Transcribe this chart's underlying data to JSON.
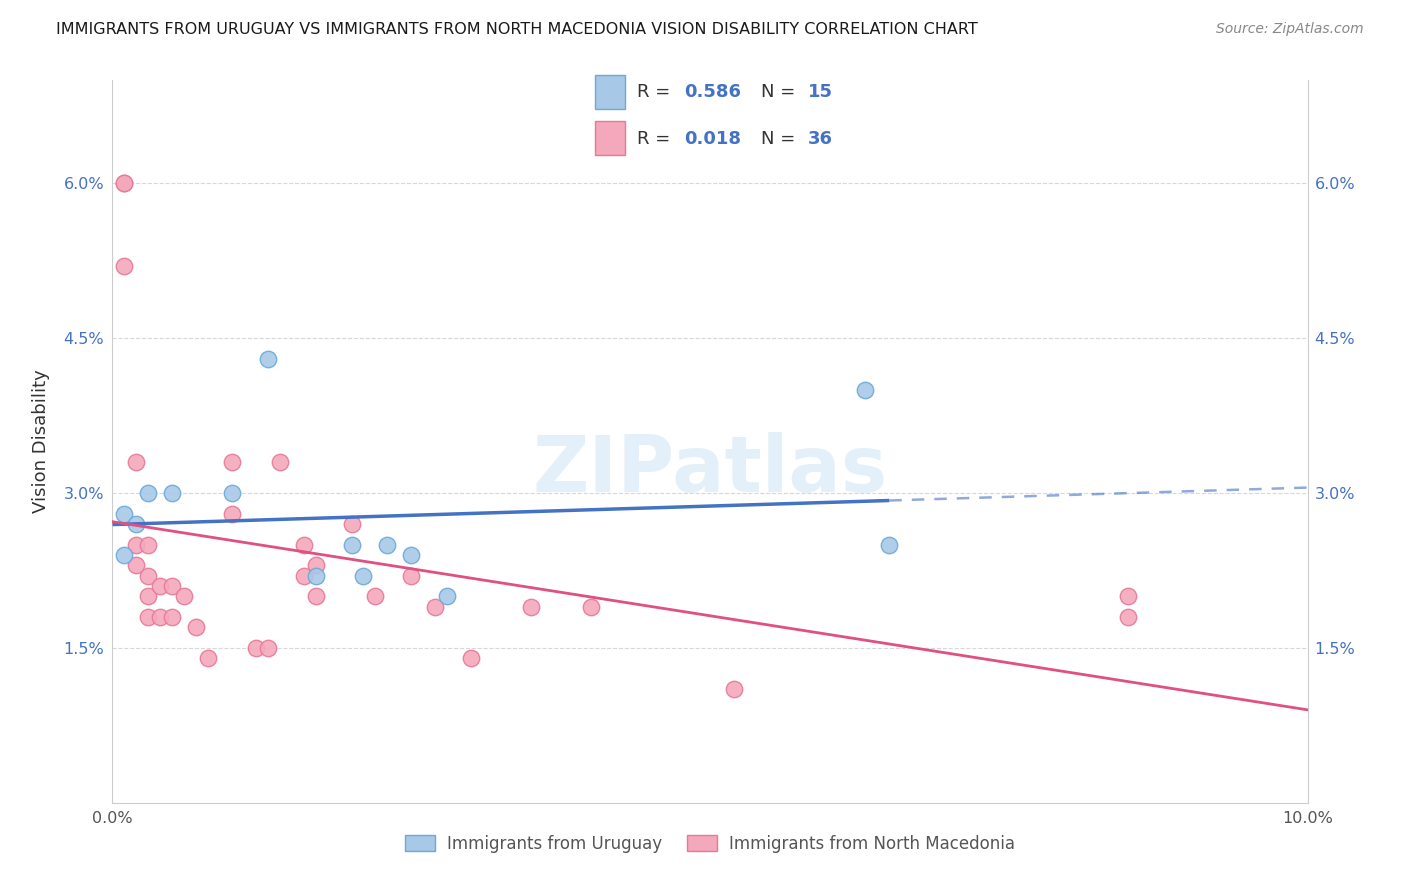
{
  "title": "IMMIGRANTS FROM URUGUAY VS IMMIGRANTS FROM NORTH MACEDONIA VISION DISABILITY CORRELATION CHART",
  "source": "Source: ZipAtlas.com",
  "ylabel": "Vision Disability",
  "watermark": "ZIPatlas",
  "xlim": [
    0.0,
    0.1
  ],
  "ylim": [
    0.0,
    0.07
  ],
  "uruguay_color": "#a8c8e8",
  "uruguay_edge": "#6aaad8",
  "macedonia_color": "#f4a8bc",
  "macedonia_edge": "#e87898",
  "line_uruguay_color": "#4472c4",
  "line_macedonia_color": "#e05080",
  "R_uruguay": 0.586,
  "N_uruguay": 15,
  "R_macedonia": 0.018,
  "N_macedonia": 36,
  "uruguay_x": [
    0.001,
    0.001,
    0.002,
    0.003,
    0.005,
    0.01,
    0.013,
    0.017,
    0.02,
    0.021,
    0.023,
    0.025,
    0.028,
    0.063,
    0.065
  ],
  "uruguay_y": [
    0.028,
    0.024,
    0.027,
    0.03,
    0.03,
    0.03,
    0.043,
    0.022,
    0.025,
    0.022,
    0.025,
    0.024,
    0.02,
    0.04,
    0.025
  ],
  "macedonia_x": [
    0.001,
    0.001,
    0.001,
    0.002,
    0.002,
    0.002,
    0.003,
    0.003,
    0.003,
    0.003,
    0.004,
    0.004,
    0.005,
    0.005,
    0.006,
    0.007,
    0.008,
    0.01,
    0.01,
    0.012,
    0.013,
    0.014,
    0.016,
    0.016,
    0.017,
    0.017,
    0.02,
    0.022,
    0.025,
    0.027,
    0.03,
    0.035,
    0.04,
    0.052,
    0.085,
    0.085
  ],
  "macedonia_y": [
    0.06,
    0.06,
    0.052,
    0.033,
    0.025,
    0.023,
    0.025,
    0.022,
    0.02,
    0.018,
    0.021,
    0.018,
    0.021,
    0.018,
    0.02,
    0.017,
    0.014,
    0.028,
    0.033,
    0.015,
    0.015,
    0.033,
    0.025,
    0.022,
    0.023,
    0.02,
    0.027,
    0.02,
    0.022,
    0.019,
    0.014,
    0.019,
    0.019,
    0.011,
    0.02,
    0.018
  ],
  "marker_size": 140,
  "background_color": "#ffffff",
  "grid_color": "#d8d8d8"
}
